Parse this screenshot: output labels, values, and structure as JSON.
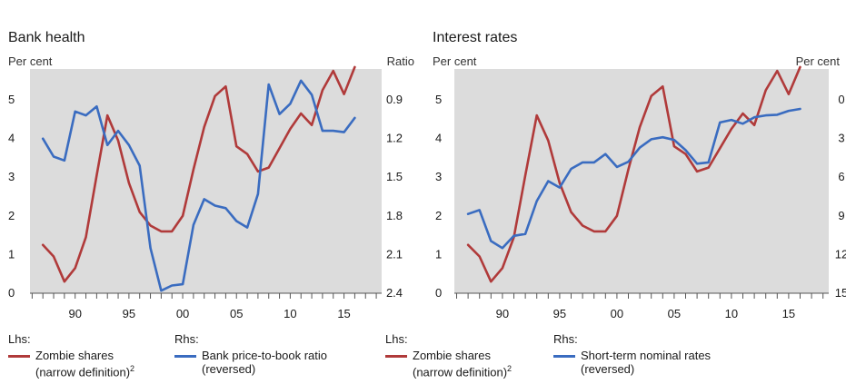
{
  "chart_data": [
    {
      "type": "line",
      "title": "Bank health",
      "left_unit": "Per cent",
      "right_unit": "Ratio",
      "x_ticks": [
        1990,
        1995,
        2000,
        2005,
        2010,
        2015
      ],
      "x_tick_labels": [
        "90",
        "95",
        "00",
        "05",
        "10",
        "15"
      ],
      "xlim": [
        1985.8,
        2018.5
      ],
      "left_axis": {
        "ylim": [
          0,
          5.8
        ],
        "ticks": [
          0,
          1,
          2,
          3,
          4,
          5
        ],
        "tick_labels": [
          "0",
          "1",
          "2",
          "3",
          "4",
          "5"
        ]
      },
      "right_axis": {
        "ylim": [
          2.4,
          0.66
        ],
        "reversed": true,
        "ticks": [
          0.9,
          1.2,
          1.5,
          1.8,
          2.1,
          2.4
        ],
        "tick_labels": [
          "0.9",
          "1.2",
          "1.5",
          "1.8",
          "2.1",
          "2.4"
        ]
      },
      "series": [
        {
          "name": "Zombie shares (narrow definition)",
          "axis": "left",
          "color": "#b03a3a",
          "x": [
            1987,
            1988,
            1989,
            1990,
            1991,
            1992,
            1993,
            1994,
            1995,
            1996,
            1997,
            1998,
            1999,
            2000,
            2001,
            2002,
            2003,
            2004,
            2005,
            2006,
            2007,
            2008,
            2009,
            2010,
            2011,
            2012,
            2013,
            2014,
            2015,
            2016
          ],
          "y": [
            1.25,
            0.95,
            0.3,
            0.65,
            1.45,
            3.05,
            4.6,
            3.95,
            2.85,
            2.1,
            1.75,
            1.6,
            1.6,
            2.0,
            3.2,
            4.3,
            5.1,
            5.35,
            3.8,
            3.6,
            3.15,
            3.25,
            3.75,
            4.25,
            4.65,
            4.35,
            5.25,
            5.75,
            5.15,
            5.85
          ]
        },
        {
          "name": "Bank price-to-book ratio (reversed)",
          "axis": "right",
          "color": "#3a6cc0",
          "x": [
            1987,
            1988,
            1989,
            1990,
            1991,
            1992,
            1993,
            1994,
            1995,
            1996,
            1997,
            1998,
            1999,
            2000,
            2001,
            2002,
            2003,
            2004,
            2005,
            2006,
            2007,
            2008,
            2009,
            2010,
            2011,
            2012,
            2013,
            2014,
            2015,
            2016
          ],
          "y": [
            1.2,
            1.34,
            1.37,
            0.99,
            1.02,
            0.95,
            1.25,
            1.14,
            1.25,
            1.41,
            2.05,
            2.38,
            2.34,
            2.33,
            1.87,
            1.67,
            1.72,
            1.74,
            1.84,
            1.89,
            1.63,
            0.78,
            1.01,
            0.93,
            0.75,
            0.86,
            1.14,
            1.14,
            1.15,
            1.04
          ]
        }
      ]
    },
    {
      "type": "line",
      "title": "Interest rates",
      "left_unit": "Per cent",
      "right_unit": "Per cent",
      "x_ticks": [
        1990,
        1995,
        2000,
        2005,
        2010,
        2015
      ],
      "x_tick_labels": [
        "90",
        "95",
        "00",
        "05",
        "10",
        "15"
      ],
      "xlim": [
        1985.8,
        2018.5
      ],
      "left_axis": {
        "ylim": [
          0,
          5.8
        ],
        "ticks": [
          0,
          1,
          2,
          3,
          4,
          5
        ],
        "tick_labels": [
          "0",
          "1",
          "2",
          "3",
          "4",
          "5"
        ]
      },
      "right_axis": {
        "ylim": [
          15,
          -2.4
        ],
        "reversed": true,
        "ticks": [
          0,
          3,
          6,
          9,
          12,
          15
        ],
        "tick_labels": [
          "0",
          "3",
          "6",
          "9",
          "12",
          "15"
        ]
      },
      "series": [
        {
          "name": "Zombie shares (narrow definition)",
          "axis": "left",
          "color": "#b03a3a",
          "x": [
            1987,
            1988,
            1989,
            1990,
            1991,
            1992,
            1993,
            1994,
            1995,
            1996,
            1997,
            1998,
            1999,
            2000,
            2001,
            2002,
            2003,
            2004,
            2005,
            2006,
            2007,
            2008,
            2009,
            2010,
            2011,
            2012,
            2013,
            2014,
            2015,
            2016
          ],
          "y": [
            1.25,
            0.95,
            0.3,
            0.65,
            1.45,
            3.05,
            4.6,
            3.95,
            2.85,
            2.1,
            1.75,
            1.6,
            1.6,
            2.0,
            3.2,
            4.3,
            5.1,
            5.35,
            3.8,
            3.6,
            3.15,
            3.25,
            3.75,
            4.25,
            4.65,
            4.35,
            5.25,
            5.75,
            5.15,
            5.85
          ]
        },
        {
          "name": "Short-term nominal rates (reversed)",
          "axis": "right",
          "color": "#3a6cc0",
          "x": [
            1987,
            1988,
            1989,
            1990,
            1991,
            1992,
            1993,
            1994,
            1995,
            1996,
            1997,
            1998,
            1999,
            2000,
            2001,
            2002,
            2003,
            2004,
            2005,
            2006,
            2007,
            2008,
            2009,
            2010,
            2011,
            2012,
            2013,
            2014,
            2015,
            2016
          ],
          "y": [
            8.85,
            8.55,
            10.95,
            11.5,
            10.55,
            10.4,
            7.85,
            6.3,
            6.8,
            5.35,
            4.85,
            4.85,
            4.2,
            5.2,
            4.8,
            3.7,
            3.05,
            2.9,
            3.1,
            3.9,
            4.95,
            4.85,
            1.75,
            1.55,
            1.85,
            1.35,
            1.2,
            1.15,
            0.85,
            0.7
          ]
        }
      ]
    }
  ],
  "legends": [
    {
      "lhs_head": "Lhs:",
      "rhs_head": "Rhs:",
      "lhs_line1": "Zombie shares",
      "lhs_line2": "(narrow definition)",
      "lhs_sup": "2",
      "rhs_line1": "Bank price-to-book ratio",
      "rhs_line2": "(reversed)",
      "lhs_color": "#b03a3a",
      "rhs_color": "#3a6cc0"
    },
    {
      "lhs_head": "Lhs:",
      "rhs_head": "Rhs:",
      "lhs_line1": "Zombie shares",
      "lhs_line2": "(narrow definition)",
      "lhs_sup": "2",
      "rhs_line1": "Short-term nominal rates",
      "rhs_line2": "(reversed)",
      "lhs_color": "#b03a3a",
      "rhs_color": "#3a6cc0"
    }
  ]
}
